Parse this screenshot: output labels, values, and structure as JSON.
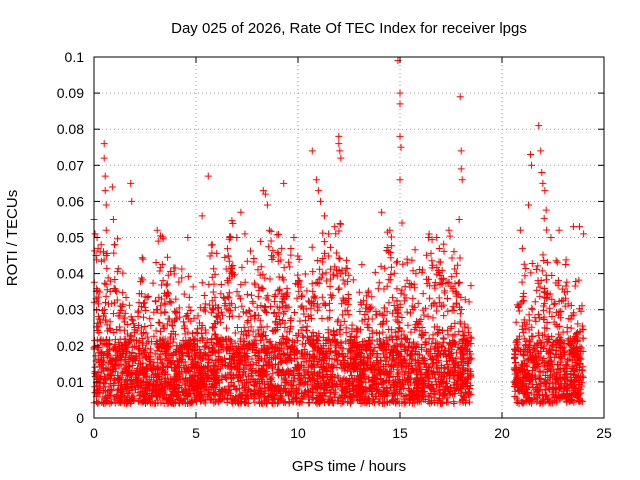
{
  "chart_data": {
    "type": "scatter",
    "title": "Day 025 of 2026, Rate Of TEC Index for receiver lpgs",
    "xlabel": "GPS time / hours",
    "ylabel": "ROTI / TECUs",
    "xlim": [
      0,
      25
    ],
    "ylim": [
      0,
      0.1
    ],
    "x_ticks": [
      "0",
      "5",
      "10",
      "15",
      "20",
      "25"
    ],
    "y_ticks": [
      "0",
      "0.01",
      "0.02",
      "0.03",
      "0.04",
      "0.05",
      "0.06",
      "0.07",
      "0.08",
      "0.09",
      "0.1"
    ],
    "grid": true,
    "marker": "plus",
    "color": "#ff0000",
    "coverage_hours": [
      [
        0.0,
        18.5
      ],
      [
        20.6,
        24.0
      ]
    ],
    "series": [
      {
        "x": [
          0.0,
          0.05,
          0.1,
          0.15,
          0.2,
          0.3,
          0.35,
          0.5,
          0.5,
          0.55,
          0.55,
          0.6,
          0.6,
          0.6,
          0.9,
          0.95,
          1.0,
          1.8,
          1.85,
          2.4,
          3.1,
          3.15,
          4.6,
          5.3,
          5.6,
          5.8,
          6.7,
          7.0,
          7.2,
          7.4,
          8.3,
          8.4,
          8.5,
          8.6,
          9.2,
          9.3,
          9.8,
          10.7,
          10.9,
          11.0,
          11.1,
          11.3,
          11.5,
          11.8,
          12.0,
          12.0,
          12.05,
          12.1,
          14.1,
          14.5,
          14.9,
          15.0,
          15.0,
          15.0,
          15.0,
          15.05,
          15.1,
          16.4,
          16.8,
          17.4,
          17.9,
          17.95,
          18.0,
          18.0,
          18.05,
          20.9,
          21.0,
          21.3,
          21.4,
          21.45,
          21.8,
          21.9,
          21.95,
          22.0,
          22.1,
          22.4,
          22.8,
          23.5,
          23.8,
          24.0
        ],
        "y": [
          0.055,
          0.051,
          0.045,
          0.05,
          0.047,
          0.046,
          0.048,
          0.076,
          0.072,
          0.067,
          0.063,
          0.059,
          0.052,
          0.045,
          0.064,
          0.055,
          0.048,
          0.065,
          0.06,
          0.044,
          0.052,
          0.049,
          0.05,
          0.056,
          0.067,
          0.048,
          0.05,
          0.05,
          0.057,
          0.051,
          0.063,
          0.062,
          0.059,
          0.052,
          0.047,
          0.065,
          0.05,
          0.074,
          0.066,
          0.063,
          0.06,
          0.056,
          0.051,
          0.053,
          0.078,
          0.076,
          0.074,
          0.072,
          0.057,
          0.052,
          0.099,
          0.09,
          0.087,
          0.078,
          0.066,
          0.075,
          0.054,
          0.05,
          0.05,
          0.052,
          0.055,
          0.089,
          0.074,
          0.069,
          0.066,
          0.052,
          0.047,
          0.059,
          0.073,
          0.07,
          0.081,
          0.074,
          0.068,
          0.065,
          0.063,
          0.05,
          0.052,
          0.053,
          0.053,
          0.051
        ]
      }
    ]
  }
}
